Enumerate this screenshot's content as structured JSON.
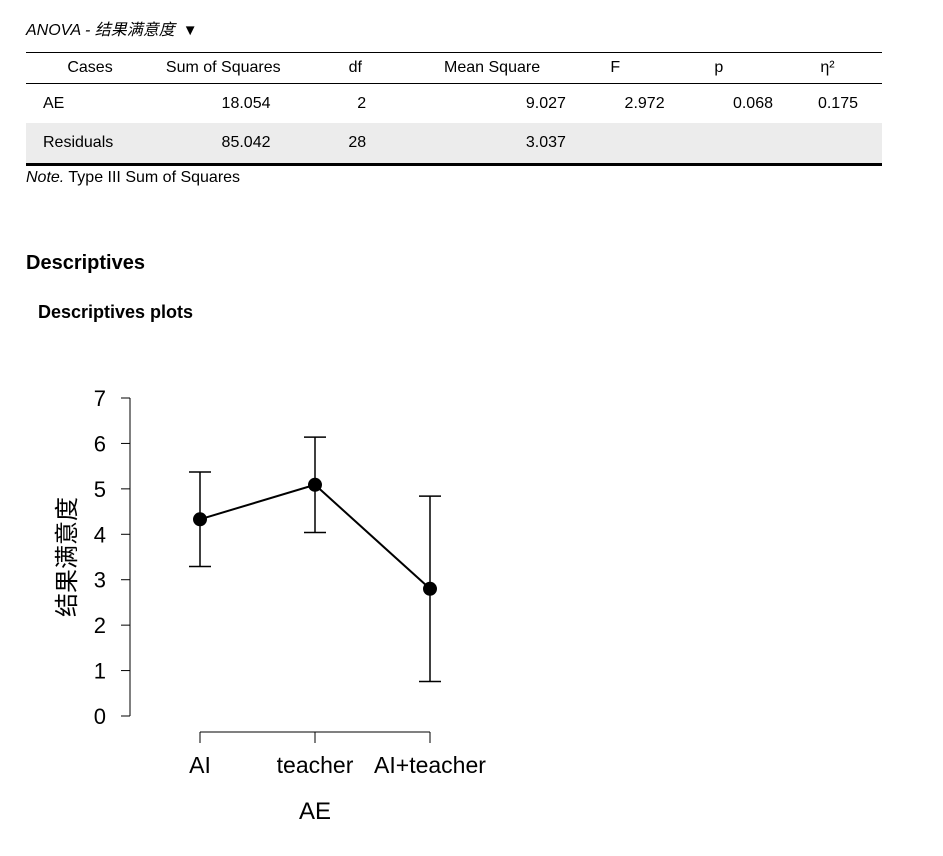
{
  "anova": {
    "title": "ANOVA - 结果满意度",
    "caret": "▼",
    "columns": [
      "Cases",
      "Sum of Squares",
      "df",
      "Mean Square",
      "F",
      "p",
      "η²"
    ],
    "rows": [
      [
        "AE",
        "18.054",
        "2",
        "9.027",
        "2.972",
        "0.068",
        "0.175"
      ],
      [
        "Residuals",
        "85.042",
        "28",
        "3.037",
        "",
        "",
        ""
      ]
    ],
    "note_label": "Note.",
    "note_text": " Type III Sum of Squares"
  },
  "descriptives": {
    "heading": "Descriptives",
    "subheading": "Descriptives plots"
  },
  "chart_data": {
    "type": "line",
    "categories": [
      "AI",
      "teacher",
      "AI+teacher"
    ],
    "values": [
      4.33,
      5.09,
      2.8
    ],
    "error_low": [
      3.29,
      4.04,
      0.76
    ],
    "error_high": [
      5.37,
      6.14,
      4.84
    ],
    "xlabel": "AE",
    "ylabel": "结果满意度",
    "ylim": [
      0,
      7
    ],
    "yticks": [
      0,
      1,
      2,
      3,
      4,
      5,
      6,
      7
    ],
    "grid": false,
    "color": "#000000"
  }
}
